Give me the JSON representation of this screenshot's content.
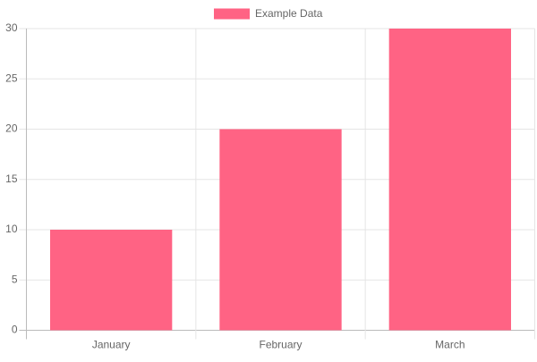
{
  "chart_data": {
    "type": "bar",
    "categories": [
      "January",
      "February",
      "March"
    ],
    "series": [
      {
        "name": "Example Data",
        "color": "#ff6384",
        "values": [
          10,
          20,
          30
        ]
      }
    ],
    "ylim": [
      0,
      30
    ],
    "yticks": [
      0,
      5,
      10,
      15,
      20,
      25,
      30
    ],
    "grid": true,
    "legend": "top"
  }
}
